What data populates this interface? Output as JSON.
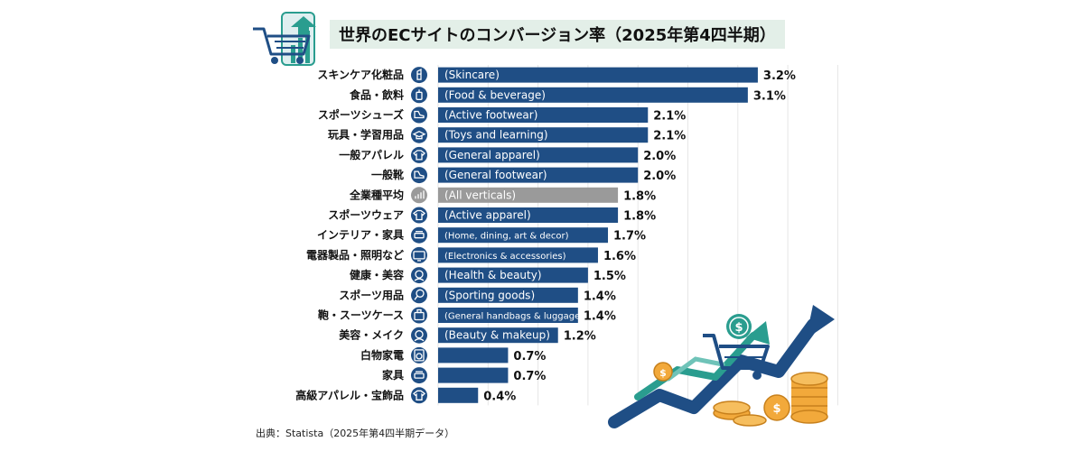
{
  "title": "世界のECサイトのコンバージョン率（2025年第4四半期）",
  "source": "出典：Statista（2025年第4四半期データ）",
  "colors": {
    "bar": "#1f4e85",
    "highlight": "#9a9a9a",
    "title_bg": "#e3efe8",
    "accent_teal": "#2a9d8f",
    "coin": "#f2a93b"
  },
  "chart_data": {
    "type": "bar",
    "orientation": "horizontal",
    "value_unit": "%",
    "categories": [
      "スキンケア化粧品",
      "食品・飲料",
      "スポーツシューズ",
      "玩具・学習用品",
      "一般アパレル",
      "一般靴",
      "全業種平均",
      "スポーツウェア",
      "インテリア・家具",
      "電器製品・照明など",
      "健康・美容",
      "スポーツ用品",
      "鞄・スーツケース",
      "美容・メイク",
      "白物家電",
      "家具",
      "高級アパレル・宝飾品"
    ],
    "sublabels": [
      "(Skincare)",
      "(Food & beverage)",
      "(Active footwear)",
      "(Toys and learning)",
      "(General apparel)",
      "(General footwear)",
      "(All verticals)",
      "(Active apparel)",
      "(Home, dining, art & decor)",
      "(Electronics & accessories)",
      "(Health & beauty)",
      "(Sporting goods)",
      "(General handbags & luggage)",
      "(Beauty & makeup)",
      "",
      "",
      ""
    ],
    "values": [
      3.2,
      3.1,
      2.1,
      2.1,
      2.0,
      2.0,
      1.8,
      1.8,
      1.7,
      1.6,
      1.5,
      1.4,
      1.4,
      1.2,
      0.7,
      0.7,
      0.4
    ],
    "value_labels": [
      "3.2%",
      "3.1%",
      "2.1%",
      "2.1%",
      "2.0%",
      "2.0%",
      "1.8%",
      "1.8%",
      "1.7%",
      "1.6%",
      "1.5%",
      "1.4%",
      "1.4%",
      "1.2%",
      "0.7%",
      "0.7%",
      "0.4%"
    ],
    "highlight_index": 6,
    "icons": [
      "lipstick-icon",
      "bottle-icon",
      "sneaker-icon",
      "graduation-cap-icon",
      "shirt-icon",
      "shoe-icon",
      "bar-chart-icon",
      "tshirt-icon",
      "sofa-icon",
      "monitor-icon",
      "face-icon",
      "racket-icon",
      "suitcase-icon",
      "makeup-face-icon",
      "washing-machine-icon",
      "couch-icon",
      "shirt-icon"
    ],
    "grid": true,
    "legend": "none"
  }
}
